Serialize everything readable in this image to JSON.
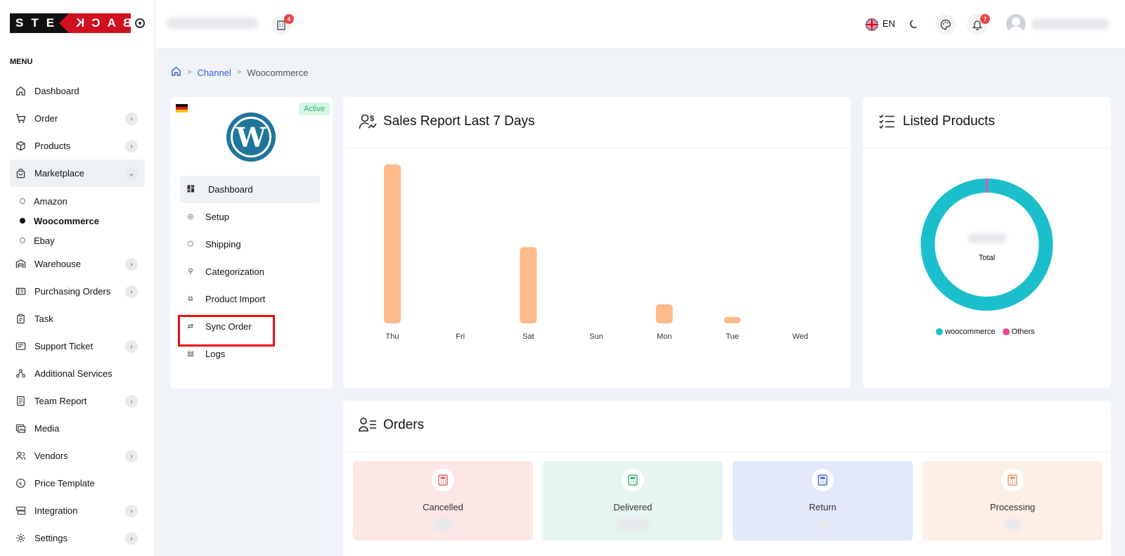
{
  "logo": {
    "left": "STEG",
    "right": "BACK"
  },
  "menu_title": "MENU",
  "nav": [
    {
      "label": "Dashboard",
      "icon": "home-icon",
      "chevron": false
    },
    {
      "label": "Order",
      "icon": "cart-icon",
      "chevron": true
    },
    {
      "label": "Products",
      "icon": "box-icon",
      "chevron": true
    },
    {
      "label": "Marketplace",
      "icon": "bag-icon",
      "chevron": true,
      "expanded": true
    }
  ],
  "marketplace_sub": [
    {
      "label": "Amazon",
      "active": false
    },
    {
      "label": "Woocommerce",
      "active": true
    },
    {
      "label": "Ebay",
      "active": false
    }
  ],
  "nav2": [
    {
      "label": "Warehouse",
      "icon": "warehouse-icon",
      "chevron": true
    },
    {
      "label": "Purchasing Orders",
      "icon": "purchase-icon",
      "chevron": true
    },
    {
      "label": "Task",
      "icon": "clipboard-icon",
      "chevron": false
    },
    {
      "label": "Support Ticket",
      "icon": "ticket-icon",
      "chevron": true
    },
    {
      "label": "Additional Services",
      "icon": "services-icon",
      "chevron": false
    },
    {
      "label": "Team Report",
      "icon": "report-icon",
      "chevron": true
    },
    {
      "label": "Media",
      "icon": "media-icon",
      "chevron": false
    },
    {
      "label": "Vendors",
      "icon": "vendors-icon",
      "chevron": true
    },
    {
      "label": "Price Template",
      "icon": "euro-icon",
      "chevron": false
    },
    {
      "label": "Integration",
      "icon": "integration-icon",
      "chevron": true
    },
    {
      "label": "Settings",
      "icon": "gear-icon",
      "chevron": true
    }
  ],
  "topbar": {
    "building_badge": "4",
    "language": "EN",
    "notification_badge": "7"
  },
  "breadcrumb": {
    "channel": "Channel",
    "current": "Woocommerce"
  },
  "channel_card": {
    "status": "Active",
    "menu": [
      {
        "label": "Dashboard",
        "icon": "dashboard-icon",
        "active": true
      },
      {
        "label": "Setup",
        "icon": "setup-icon",
        "active": false
      },
      {
        "label": "Shipping",
        "icon": "shipping-icon",
        "active": false
      },
      {
        "label": "Categorization",
        "icon": "categorization-icon",
        "active": false
      },
      {
        "label": "Product Import",
        "icon": "import-icon",
        "active": false
      },
      {
        "label": "Sync Order",
        "icon": "sync-icon",
        "active": false
      },
      {
        "label": "Logs",
        "icon": "logs-icon",
        "active": false
      }
    ]
  },
  "sales_report": {
    "title": "Sales Report Last 7 Days"
  },
  "chart_data": [
    {
      "type": "bar",
      "title": "Sales Report Last 7 Days",
      "categories": [
        "Thu",
        "Fri",
        "Sat",
        "Sun",
        "Mon",
        "Tue",
        "Wed"
      ],
      "values": [
        100,
        0,
        48,
        0,
        12,
        4,
        0
      ],
      "color": "#fdba8c",
      "grid": false
    },
    {
      "type": "pie",
      "title": "Listed Products",
      "center_label": "Total",
      "labels": [
        "woocommerce",
        "Others"
      ],
      "values": [
        99.5,
        0.5
      ],
      "colors": [
        "#1bbfcb",
        "#ec4899"
      ],
      "legend": "bottom"
    }
  ],
  "listed_products": {
    "title": "Listed Products",
    "center_label": "Total"
  },
  "orders": {
    "title": "Orders",
    "boxes": [
      {
        "label": "Cancelled",
        "bg": "#fde6e6",
        "icon_color": "#e35d5d"
      },
      {
        "label": "Delivered",
        "bg": "#e6f6ee",
        "icon_color": "#35b46e"
      },
      {
        "label": "Return",
        "bg": "#e3e8fb",
        "icon_color": "#4a65d8"
      },
      {
        "label": "Processing",
        "bg": "#fdeee6",
        "icon_color": "#ef8a5a"
      }
    ]
  }
}
